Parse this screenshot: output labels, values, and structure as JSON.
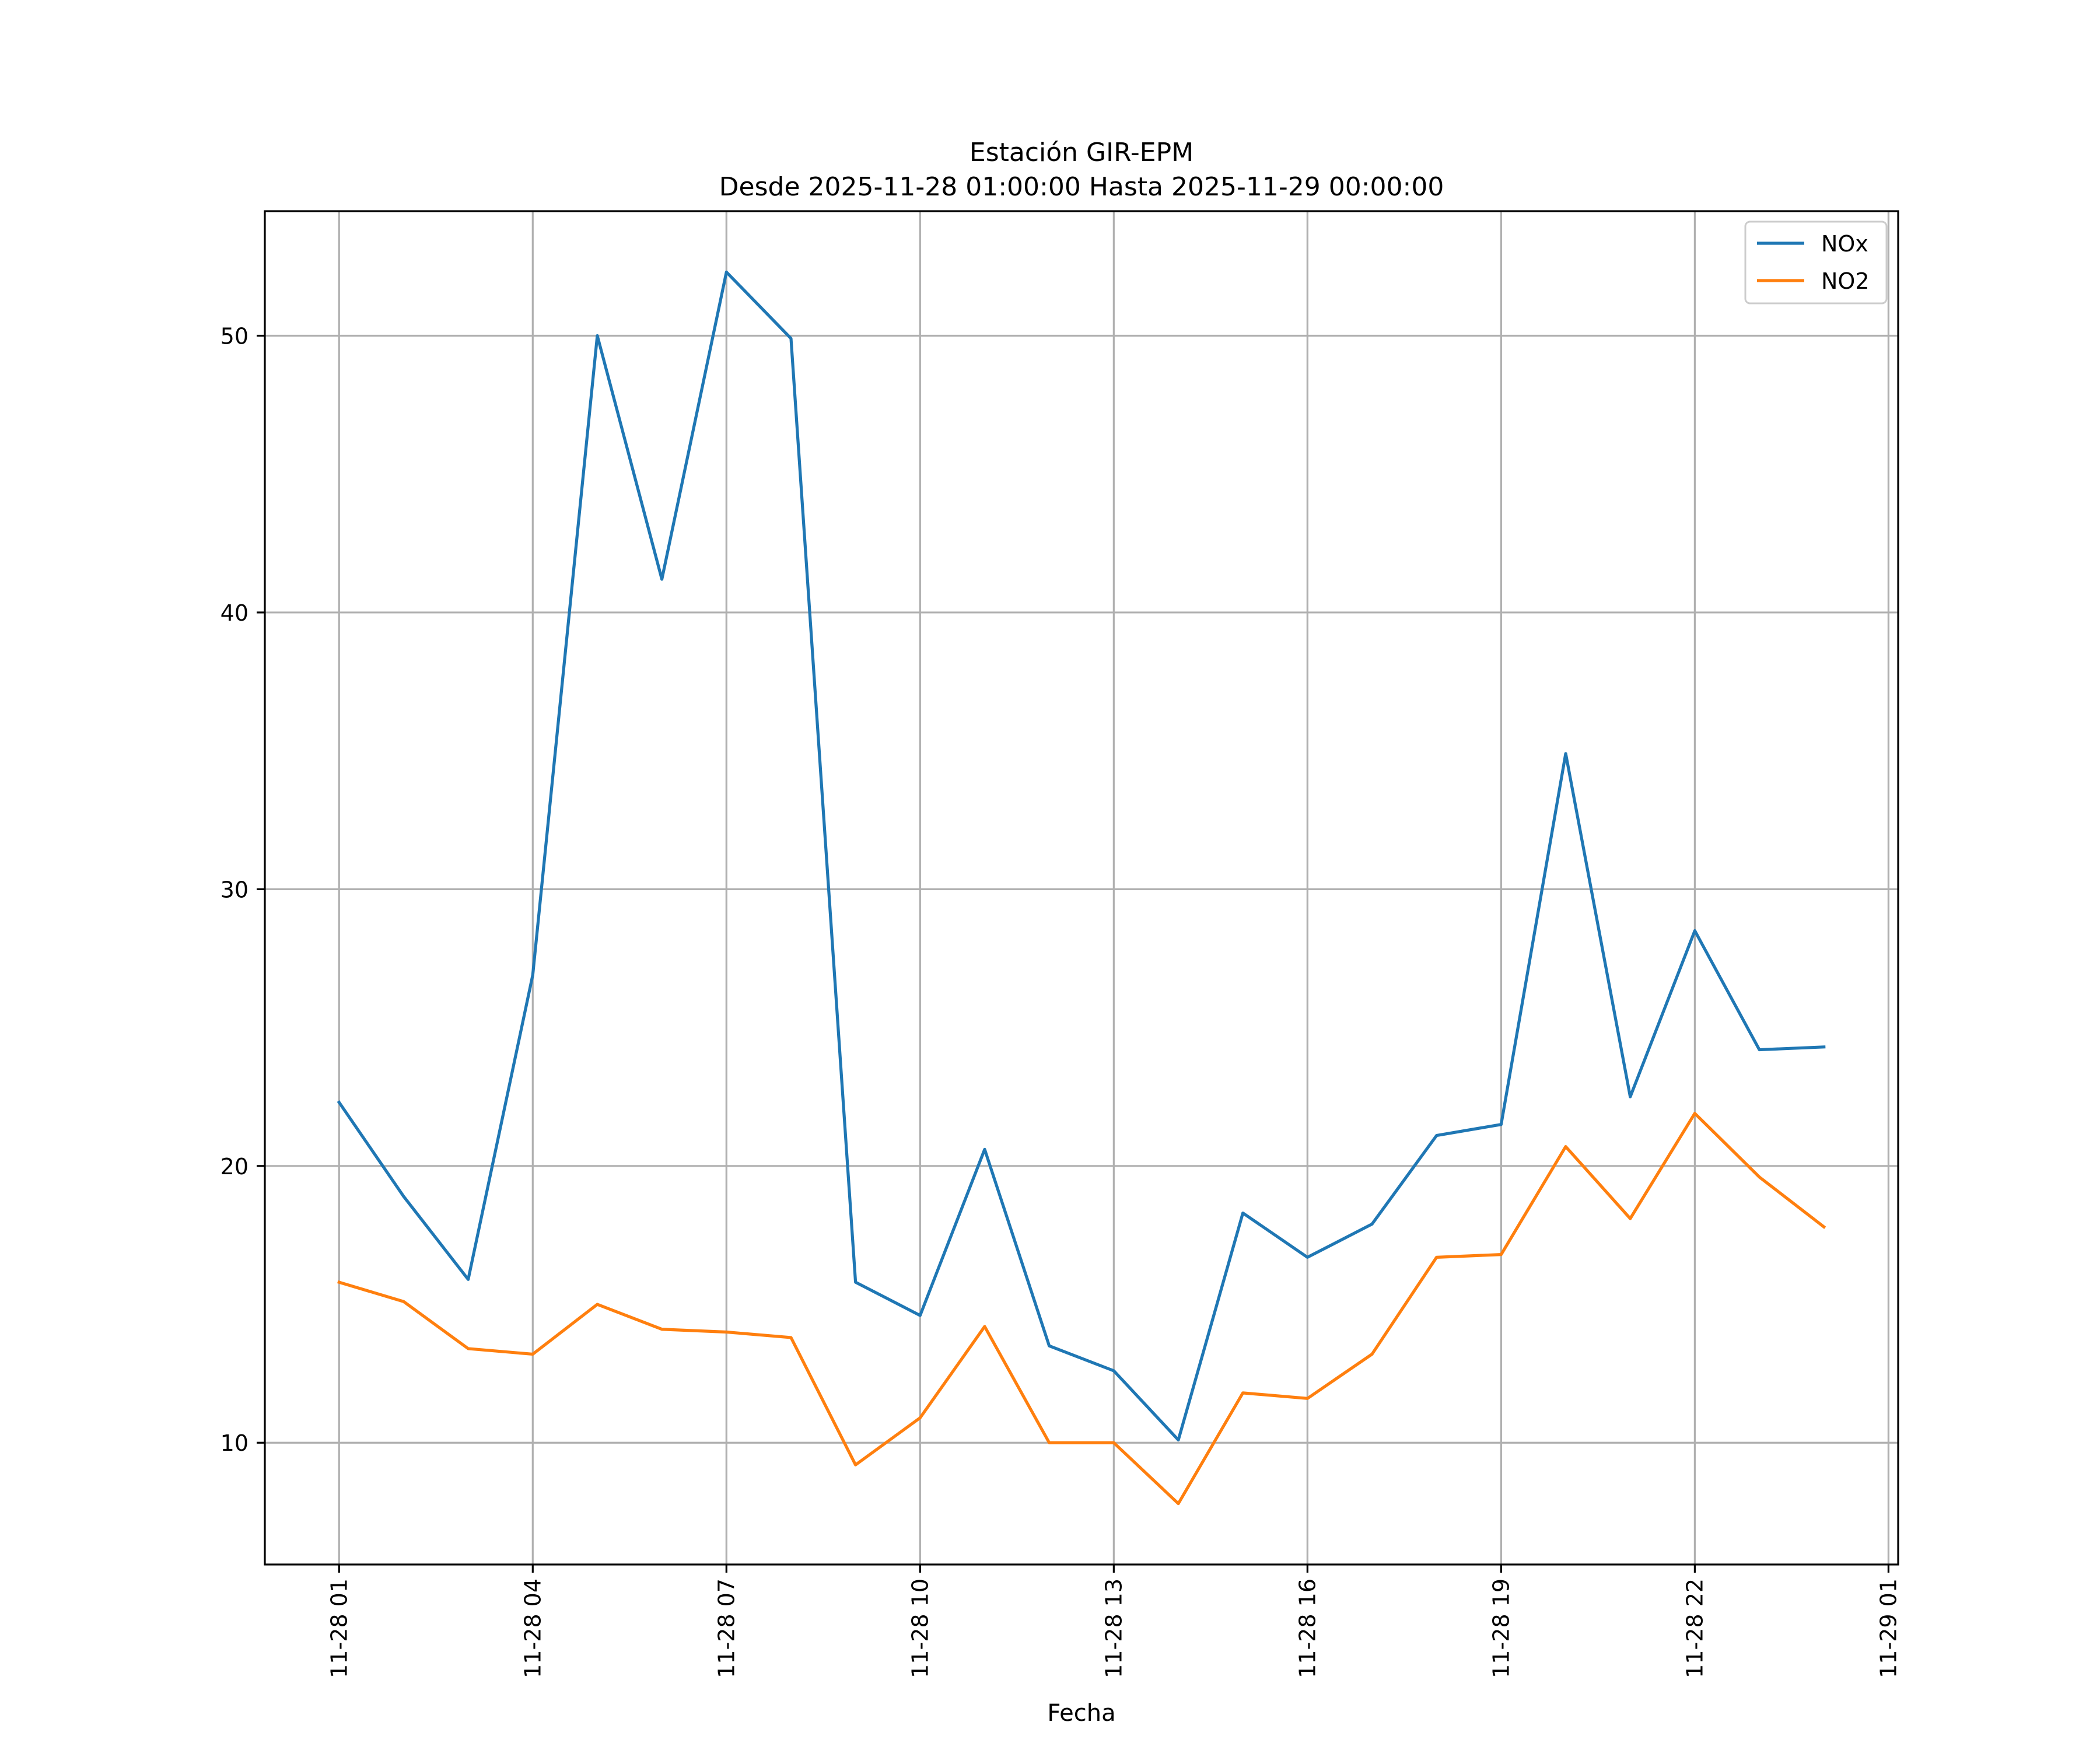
{
  "chart_data": {
    "type": "line",
    "title": "Estación GIR-EPM",
    "subtitle": "Desde 2025-11-28 01:00:00 Hasta 2025-11-29 00:00:00",
    "xlabel": "Fecha",
    "ylabel": "",
    "x_hours": [
      1,
      2,
      3,
      4,
      5,
      6,
      7,
      8,
      9,
      10,
      11,
      12,
      13,
      14,
      15,
      16,
      17,
      18,
      19,
      20,
      21,
      22,
      23,
      24
    ],
    "xlim_hours": [
      -0.15,
      25.15
    ],
    "ylim": [
      5.6,
      54.5
    ],
    "x_ticks": [
      {
        "hour": 1,
        "label": "11-28 01"
      },
      {
        "hour": 4,
        "label": "11-28 04"
      },
      {
        "hour": 7,
        "label": "11-28 07"
      },
      {
        "hour": 10,
        "label": "11-28 10"
      },
      {
        "hour": 13,
        "label": "11-28 13"
      },
      {
        "hour": 16,
        "label": "11-28 16"
      },
      {
        "hour": 19,
        "label": "11-28 19"
      },
      {
        "hour": 22,
        "label": "11-28 22"
      },
      {
        "hour": 25,
        "label": "11-29 01"
      }
    ],
    "y_ticks": [
      {
        "value": 10,
        "label": "10"
      },
      {
        "value": 20,
        "label": "20"
      },
      {
        "value": 30,
        "label": "30"
      },
      {
        "value": 40,
        "label": "40"
      },
      {
        "value": 50,
        "label": "50"
      }
    ],
    "grid": true,
    "legend_position": "top-right",
    "series": [
      {
        "name": "NOx",
        "color": "#1f77b4",
        "values": [
          22.3,
          18.9,
          15.9,
          26.9,
          50.0,
          41.2,
          52.3,
          49.9,
          15.8,
          14.6,
          20.6,
          13.5,
          12.6,
          10.1,
          18.3,
          16.7,
          17.9,
          21.1,
          21.5,
          34.9,
          22.5,
          28.5,
          24.2,
          24.3
        ]
      },
      {
        "name": "NO2",
        "color": "#ff7f0e",
        "values": [
          15.8,
          15.1,
          13.4,
          13.2,
          15.0,
          14.1,
          14.0,
          13.8,
          9.2,
          10.9,
          14.2,
          10.0,
          10.0,
          7.8,
          11.8,
          11.6,
          13.2,
          16.7,
          16.8,
          20.7,
          18.1,
          21.9,
          19.6,
          17.8
        ]
      }
    ]
  }
}
